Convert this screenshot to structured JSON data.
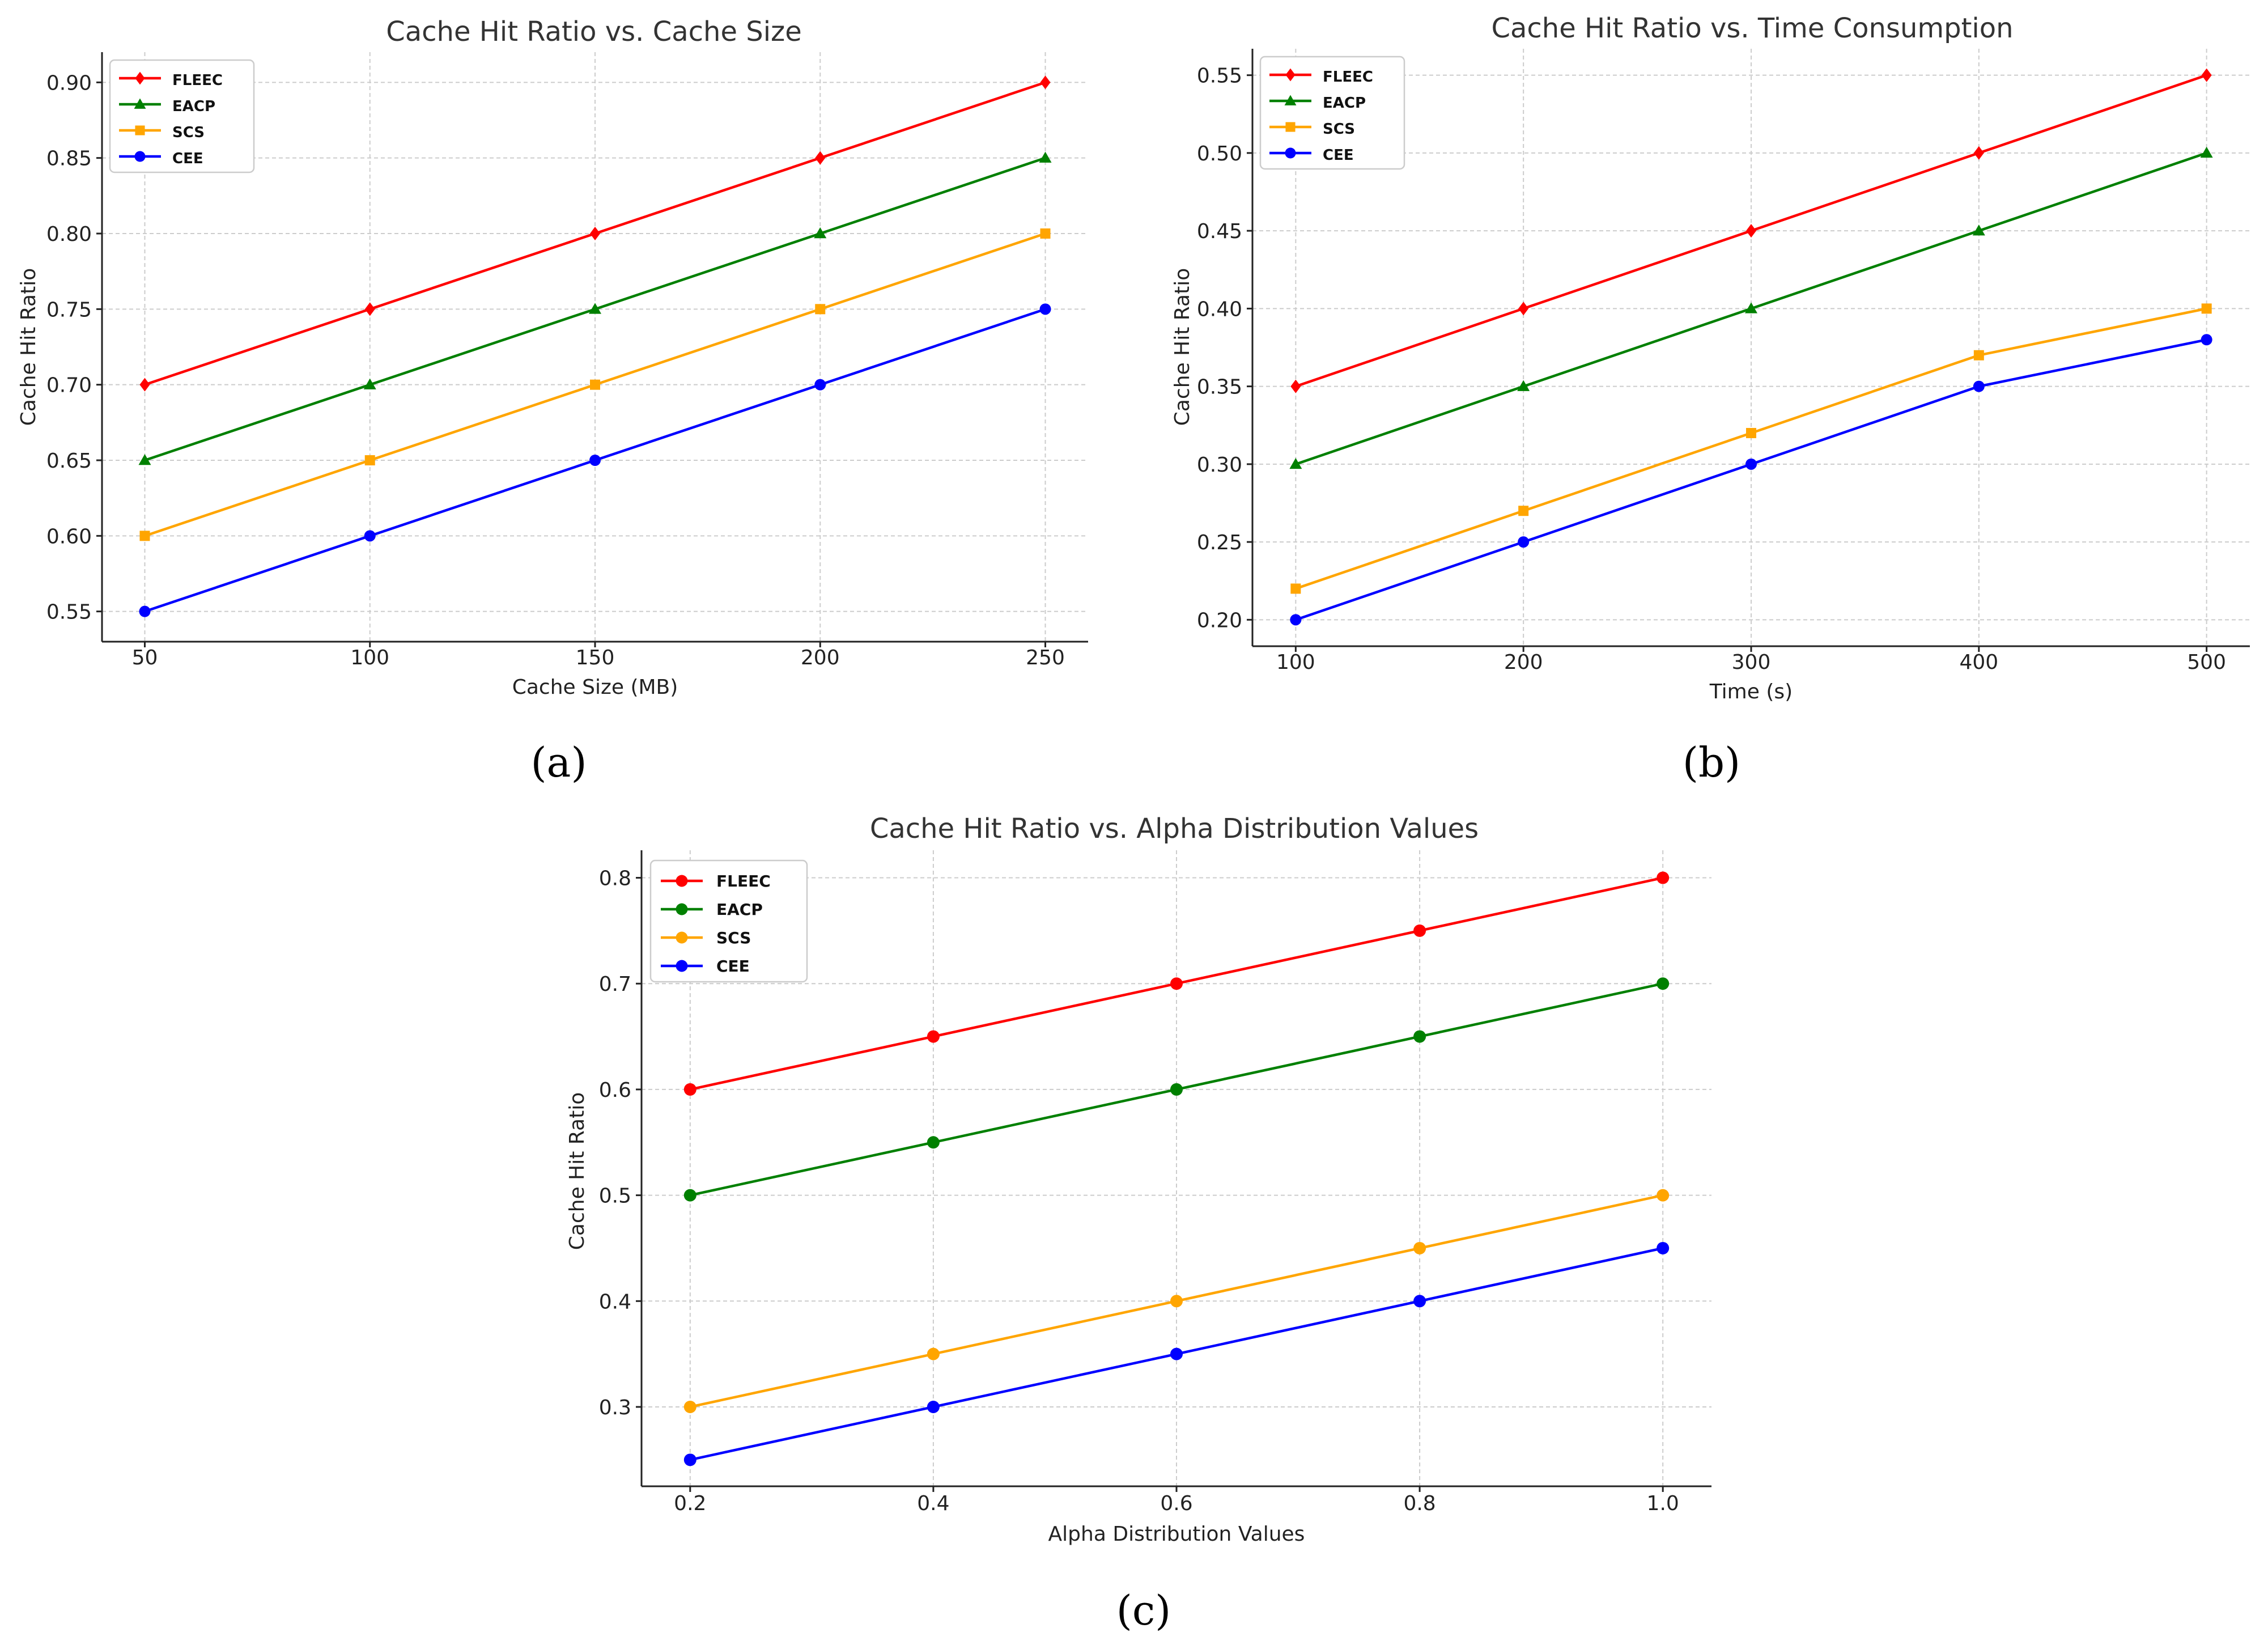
{
  "chart_data": [
    {
      "type": "line",
      "caption": "(a)",
      "title": "Cache Hit Ratio vs. Cache Size",
      "xlabel": "Cache Size (MB)",
      "ylabel": "Cache Hit Ratio",
      "x": [
        50,
        100,
        150,
        200,
        250
      ],
      "x_tick_labels": [
        "50",
        "100",
        "150",
        "200",
        "250"
      ],
      "y_ticks": [
        "0.55",
        "0.60",
        "0.65",
        "0.70",
        "0.75",
        "0.80",
        "0.85",
        "0.90"
      ],
      "xlim": [
        40.5,
        259.5
      ],
      "ylim": [
        0.53,
        0.92
      ],
      "grid": true,
      "legend_position": "top-left",
      "series": [
        {
          "name": "FLEEC",
          "color": "#ff0000",
          "marker": "diamond",
          "values": [
            0.7,
            0.75,
            0.8,
            0.85,
            0.9
          ]
        },
        {
          "name": "EACP",
          "color": "#008000",
          "marker": "triangle",
          "values": [
            0.65,
            0.7,
            0.75,
            0.8,
            0.85
          ]
        },
        {
          "name": "SCS",
          "color": "#ffa500",
          "marker": "square",
          "values": [
            0.6,
            0.65,
            0.7,
            0.75,
            0.8
          ]
        },
        {
          "name": "CEE",
          "color": "#0000ff",
          "marker": "circle",
          "values": [
            0.55,
            0.6,
            0.65,
            0.7,
            0.75
          ]
        }
      ]
    },
    {
      "type": "line",
      "caption": "(b)",
      "title": "Cache Hit Ratio vs. Time Consumption",
      "xlabel": "Time (s)",
      "ylabel": "Cache Hit Ratio",
      "x": [
        100,
        200,
        300,
        400,
        500
      ],
      "x_tick_labels": [
        "100",
        "200",
        "300",
        "400",
        "500"
      ],
      "y_ticks": [
        "0.20",
        "0.25",
        "0.30",
        "0.35",
        "0.40",
        "0.45",
        "0.50",
        "0.55"
      ],
      "xlim": [
        81,
        519
      ],
      "ylim": [
        0.183,
        0.567
      ],
      "grid": true,
      "legend_position": "top-left",
      "series": [
        {
          "name": "FLEEC",
          "color": "#ff0000",
          "marker": "diamond",
          "values": [
            0.35,
            0.4,
            0.45,
            0.5,
            0.55
          ]
        },
        {
          "name": "EACP",
          "color": "#008000",
          "marker": "triangle",
          "values": [
            0.3,
            0.35,
            0.4,
            0.45,
            0.5
          ]
        },
        {
          "name": "SCS",
          "color": "#ffa500",
          "marker": "square",
          "values": [
            0.22,
            0.27,
            0.32,
            0.37,
            0.4
          ]
        },
        {
          "name": "CEE",
          "color": "#0000ff",
          "marker": "circle",
          "values": [
            0.2,
            0.25,
            0.3,
            0.35,
            0.38
          ]
        }
      ]
    },
    {
      "type": "line",
      "caption": "(c)",
      "title": "Cache Hit Ratio vs. Alpha Distribution Values",
      "xlabel": "Alpha Distribution Values",
      "ylabel": "Cache Hit Ratio",
      "x": [
        0.2,
        0.4,
        0.6,
        0.8,
        1.0
      ],
      "x_tick_labels": [
        "0.2",
        "0.4",
        "0.6",
        "0.8",
        "1.0"
      ],
      "y_ticks": [
        "0.3",
        "0.4",
        "0.5",
        "0.6",
        "0.7",
        "0.8"
      ],
      "xlim": [
        0.16,
        1.04
      ],
      "ylim": [
        0.225,
        0.826
      ],
      "grid": true,
      "legend_position": "top-left",
      "series": [
        {
          "name": "FLEEC",
          "color": "#ff0000",
          "marker": "circle",
          "values": [
            0.6,
            0.65,
            0.7,
            0.75,
            0.8
          ]
        },
        {
          "name": "EACP",
          "color": "#008000",
          "marker": "circle",
          "values": [
            0.5,
            0.55,
            0.6,
            0.65,
            0.7
          ]
        },
        {
          "name": "SCS",
          "color": "#ffa500",
          "marker": "circle",
          "values": [
            0.3,
            0.35,
            0.4,
            0.45,
            0.5
          ]
        },
        {
          "name": "CEE",
          "color": "#0000ff",
          "marker": "circle",
          "values": [
            0.25,
            0.3,
            0.35,
            0.4,
            0.45
          ]
        }
      ]
    }
  ]
}
